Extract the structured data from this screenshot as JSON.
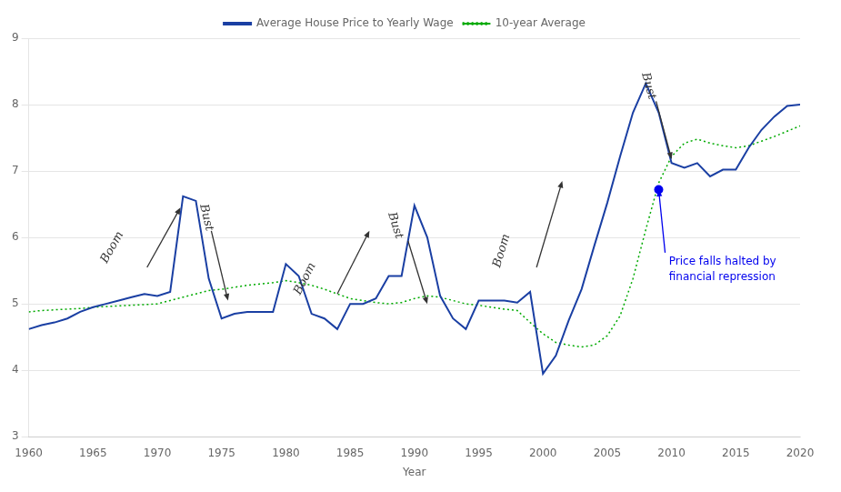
{
  "chart_data": {
    "type": "line",
    "xlabel": "Year",
    "x": [
      1960,
      1961,
      1962,
      1963,
      1964,
      1965,
      1966,
      1967,
      1968,
      1969,
      1970,
      1971,
      1972,
      1973,
      1974,
      1975,
      1976,
      1977,
      1978,
      1979,
      1980,
      1981,
      1982,
      1983,
      1984,
      1985,
      1986,
      1987,
      1988,
      1989,
      1990,
      1991,
      1992,
      1993,
      1994,
      1995,
      1996,
      1997,
      1998,
      1999,
      2000,
      2001,
      2002,
      2003,
      2004,
      2005,
      2006,
      2007,
      2008,
      2009,
      2010,
      2011,
      2012,
      2013,
      2014,
      2015,
      2016,
      2017,
      2018,
      2019,
      2020
    ],
    "series": [
      {
        "name": "Average House Price to Yearly Wage",
        "color": "#1a3fa3",
        "values": [
          4.62,
          4.68,
          4.72,
          4.78,
          4.88,
          4.95,
          5.0,
          5.05,
          5.1,
          5.15,
          5.12,
          5.18,
          6.62,
          6.55,
          5.38,
          4.78,
          4.85,
          4.88,
          4.88,
          4.88,
          5.6,
          5.42,
          4.85,
          4.78,
          4.62,
          5.0,
          5.0,
          5.08,
          5.42,
          5.42,
          6.48,
          6.0,
          5.12,
          4.78,
          4.62,
          5.05,
          5.05,
          5.05,
          5.02,
          5.18,
          3.95,
          4.22,
          4.75,
          5.22,
          5.88,
          6.52,
          7.22,
          7.88,
          8.32,
          7.88,
          7.12,
          7.05,
          7.12,
          6.92,
          7.02,
          7.02,
          7.35,
          7.62,
          7.82,
          7.98,
          8.0
        ]
      },
      {
        "name": "10-year Average",
        "color": "#00aa00",
        "line_style": "dotted",
        "values": [
          4.88,
          4.9,
          4.91,
          4.92,
          4.93,
          4.95,
          4.96,
          4.97,
          4.98,
          4.99,
          5.0,
          5.05,
          5.1,
          5.15,
          5.2,
          5.22,
          5.25,
          5.28,
          5.3,
          5.32,
          5.35,
          5.32,
          5.28,
          5.22,
          5.15,
          5.08,
          5.05,
          5.02,
          5.0,
          5.02,
          5.08,
          5.12,
          5.1,
          5.05,
          5.0,
          4.98,
          4.95,
          4.92,
          4.9,
          4.72,
          4.55,
          4.42,
          4.38,
          4.35,
          4.38,
          4.52,
          4.82,
          5.38,
          6.12,
          6.82,
          7.22,
          7.42,
          7.48,
          7.42,
          7.38,
          7.35,
          7.38,
          7.45,
          7.52,
          7.6,
          7.68
        ]
      }
    ],
    "xlim": [
      1960,
      2020
    ],
    "ylim": [
      3,
      9
    ],
    "xticks": [
      1960,
      1965,
      1970,
      1975,
      1980,
      1985,
      1990,
      1995,
      2000,
      2005,
      2010,
      2015,
      2020
    ],
    "yticks": [
      3,
      4,
      5,
      6,
      7,
      8,
      9
    ],
    "grid": "y",
    "legend": "top",
    "annotations": [
      {
        "text": [
          "Price falls halted by",
          "financial repression"
        ],
        "x": 2009.8,
        "y": 5.72,
        "color": "#0000ee",
        "point": [
          2009,
          6.72
        ],
        "arrow": [
          [
            2009.5,
            5.77
          ],
          [
            2009,
            6.72
          ]
        ]
      },
      {
        "text": "Boom",
        "x": 1966.5,
        "y": 5.85,
        "color": "#333333",
        "arrow": [
          [
            1969.2,
            5.55
          ],
          [
            1971.8,
            6.45
          ]
        ]
      },
      {
        "text": "Bust",
        "x": 1973.8,
        "y": 6.3,
        "color": "#333333",
        "arrow": [
          [
            1974.2,
            6.1
          ],
          [
            1975.5,
            5.05
          ]
        ]
      },
      {
        "text": "Boom",
        "x": 1981.5,
        "y": 5.38,
        "color": "#333333",
        "arrow": [
          [
            1984.0,
            5.15
          ],
          [
            1986.5,
            6.1
          ]
        ]
      },
      {
        "text": "Bust",
        "x": 1988.5,
        "y": 6.18,
        "color": "#333333",
        "arrow": [
          [
            1989.5,
            5.95
          ],
          [
            1991.0,
            5.0
          ]
        ]
      },
      {
        "text": "Boom",
        "x": 1996.8,
        "y": 5.8,
        "color": "#333333",
        "arrow": [
          [
            1999.5,
            5.55
          ],
          [
            2001.5,
            6.85
          ]
        ]
      },
      {
        "text": "Bust",
        "x": 2008.2,
        "y": 8.28,
        "color": "#333333",
        "arrow": [
          [
            2008.8,
            8.05
          ],
          [
            2010.0,
            7.18
          ]
        ]
      }
    ]
  }
}
